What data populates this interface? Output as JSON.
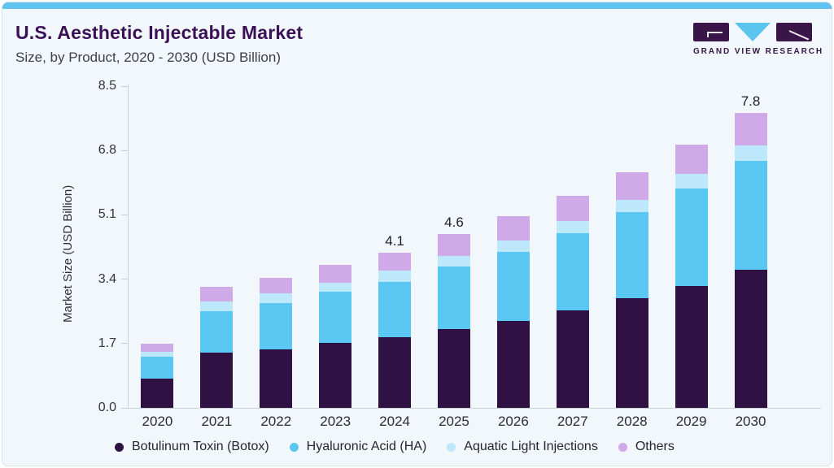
{
  "header": {
    "title": "U.S. Aesthetic Injectable Market",
    "subtitle": "Size, by Product, 2020 - 2030 (USD Billion)",
    "logo_wordmark": "GRAND VIEW RESEARCH"
  },
  "colors": {
    "accent_strip": "#5fc3ee",
    "card_background": "#f1f7fb",
    "title_text": "#3b1156",
    "logo_purple": "#3a1547",
    "logo_triangle": "#5bc5ef",
    "axis_line": "#c9d2d9",
    "series_botox": "#2f1243",
    "series_ha": "#5bc8f4",
    "series_aquatic": "#bde7fa",
    "series_others": "#d0a9e9"
  },
  "chart_data": {
    "type": "bar",
    "stacked": true,
    "title": "U.S. Aesthetic Injectable Market Size, by Product, 2020 - 2030 (USD Billion)",
    "xlabel": "",
    "ylabel": "Market Size (USD Billion)",
    "categories": [
      "2020",
      "2021",
      "2022",
      "2023",
      "2024",
      "2025",
      "2026",
      "2027",
      "2028",
      "2029",
      "2030"
    ],
    "series": [
      {
        "name": "Botulinum Toxin (Botox)",
        "color": "#2f1243",
        "values": [
          0.78,
          1.45,
          1.55,
          1.71,
          1.87,
          2.09,
          2.3,
          2.58,
          2.9,
          3.22,
          3.65
        ]
      },
      {
        "name": "Hyaluronic Acid (HA)",
        "color": "#5bc8f4",
        "values": [
          0.58,
          1.11,
          1.22,
          1.36,
          1.46,
          1.64,
          1.83,
          2.03,
          2.27,
          2.57,
          2.87
        ]
      },
      {
        "name": "Aquatic Light Injections",
        "color": "#bde7fa",
        "values": [
          0.12,
          0.26,
          0.25,
          0.24,
          0.29,
          0.28,
          0.29,
          0.33,
          0.33,
          0.39,
          0.42
        ]
      },
      {
        "name": "Others",
        "color": "#d0a9e9",
        "values": [
          0.22,
          0.38,
          0.41,
          0.47,
          0.48,
          0.59,
          0.65,
          0.66,
          0.72,
          0.77,
          0.86
        ]
      }
    ],
    "totals": [
      1.7,
      3.2,
      3.4,
      3.8,
      4.1,
      4.6,
      5.1,
      5.6,
      6.2,
      7.0,
      7.8
    ],
    "bar_labels": [
      "",
      "",
      "",
      "",
      "4.1",
      "4.6",
      "",
      "",
      "",
      "",
      "7.8"
    ],
    "ylim": [
      0,
      8.5
    ],
    "yticks": [
      0.0,
      1.7,
      3.4,
      5.1,
      6.8,
      8.5
    ],
    "ytick_labels": [
      "0.0",
      "1.7",
      "3.4",
      "5.1",
      "6.8",
      "8.5"
    ],
    "grid": false,
    "legend_position": "bottom"
  }
}
